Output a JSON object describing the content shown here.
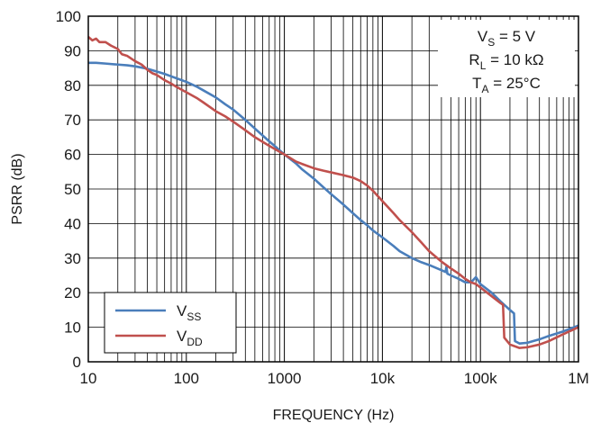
{
  "chart_data": {
    "type": "line",
    "title": "",
    "xlabel": "FREQUENCY (Hz)",
    "ylabel": "PSRR (dB)",
    "x_scale": "log",
    "xlim": [
      10,
      1000000
    ],
    "ylim": [
      0,
      100
    ],
    "grid": true,
    "x_tick_labels": [
      "10",
      "100",
      "1000",
      "10k",
      "100k",
      "1M"
    ],
    "y_ticks": [
      0,
      10,
      20,
      30,
      40,
      50,
      60,
      70,
      80,
      90,
      100
    ],
    "annotation": {
      "lines": [
        {
          "main": "V",
          "sub": "S",
          "rest": " = 5 V"
        },
        {
          "main": "R",
          "sub": "L",
          "rest": " = 10 kΩ"
        },
        {
          "main": "T",
          "sub": "A",
          "rest": " = 25°C"
        }
      ],
      "position": "top-right"
    },
    "legend_position": "bottom-left",
    "series": [
      {
        "name": "VSS",
        "legend_main": "V",
        "legend_sub": "SS",
        "color": "#4a7ebb",
        "points": [
          [
            10,
            86.5
          ],
          [
            12,
            86.5
          ],
          [
            15,
            86.3
          ],
          [
            20,
            86
          ],
          [
            25,
            85.8
          ],
          [
            30,
            85.5
          ],
          [
            40,
            84.8
          ],
          [
            50,
            84
          ],
          [
            60,
            83.3
          ],
          [
            70,
            82.6
          ],
          [
            80,
            82
          ],
          [
            100,
            81
          ],
          [
            130,
            79.5
          ],
          [
            150,
            78.5
          ],
          [
            200,
            76.5
          ],
          [
            250,
            74.5
          ],
          [
            300,
            73
          ],
          [
            400,
            70
          ],
          [
            500,
            67.5
          ],
          [
            600,
            65.5
          ],
          [
            700,
            63.8
          ],
          [
            800,
            62.4
          ],
          [
            1000,
            60
          ],
          [
            1300,
            57.5
          ],
          [
            1500,
            55.8
          ],
          [
            2000,
            53
          ],
          [
            2500,
            50.5
          ],
          [
            3000,
            48.5
          ],
          [
            4000,
            45.5
          ],
          [
            5000,
            43
          ],
          [
            6000,
            41
          ],
          [
            7000,
            39.5
          ],
          [
            8000,
            38
          ],
          [
            10000,
            36
          ],
          [
            13000,
            33.5
          ],
          [
            15000,
            32
          ],
          [
            20000,
            30
          ],
          [
            25000,
            28.8
          ],
          [
            30000,
            28
          ],
          [
            40000,
            26.5
          ],
          [
            44000,
            26
          ],
          [
            45000,
            27.5
          ],
          [
            46000,
            25.5
          ],
          [
            50000,
            25
          ],
          [
            60000,
            24
          ],
          [
            70000,
            23
          ],
          [
            80000,
            23
          ],
          [
            90000,
            24.5
          ],
          [
            95000,
            23.5
          ],
          [
            100000,
            22.5
          ],
          [
            130000,
            20
          ],
          [
            160000,
            17.5
          ],
          [
            200000,
            15
          ],
          [
            220000,
            14
          ],
          [
            225000,
            6
          ],
          [
            250000,
            5.3
          ],
          [
            300000,
            5.5
          ],
          [
            400000,
            6.5
          ],
          [
            500000,
            7.5
          ],
          [
            700000,
            8.8
          ],
          [
            1000000,
            10.5
          ]
        ]
      },
      {
        "name": "VDD",
        "legend_main": "V",
        "legend_sub": "DD",
        "color": "#c0504d",
        "points": [
          [
            10,
            94
          ],
          [
            11,
            93
          ],
          [
            12,
            93.5
          ],
          [
            13,
            92.5
          ],
          [
            15,
            92.5
          ],
          [
            17,
            91.5
          ],
          [
            20,
            90.5
          ],
          [
            22,
            89
          ],
          [
            25,
            88.5
          ],
          [
            30,
            87
          ],
          [
            35,
            86
          ],
          [
            40,
            84.5
          ],
          [
            45,
            83.5
          ],
          [
            50,
            83
          ],
          [
            60,
            81.5
          ],
          [
            70,
            80.5
          ],
          [
            80,
            79.5
          ],
          [
            100,
            78
          ],
          [
            130,
            76.2
          ],
          [
            150,
            75
          ],
          [
            200,
            72.5
          ],
          [
            250,
            71
          ],
          [
            300,
            69.5
          ],
          [
            400,
            67
          ],
          [
            500,
            65
          ],
          [
            700,
            62.5
          ],
          [
            1000,
            60
          ],
          [
            1300,
            58
          ],
          [
            1500,
            57.3
          ],
          [
            2000,
            56
          ],
          [
            2500,
            55.3
          ],
          [
            3000,
            54.8
          ],
          [
            4000,
            54
          ],
          [
            5000,
            53.3
          ],
          [
            6000,
            52.3
          ],
          [
            7000,
            51
          ],
          [
            8000,
            49.5
          ],
          [
            10000,
            46.5
          ],
          [
            13000,
            43
          ],
          [
            15000,
            41
          ],
          [
            20000,
            37.5
          ],
          [
            25000,
            34.5
          ],
          [
            30000,
            32
          ],
          [
            40000,
            29
          ],
          [
            50000,
            27
          ],
          [
            60000,
            25.5
          ],
          [
            70000,
            24
          ],
          [
            80000,
            23
          ],
          [
            90000,
            22.5
          ],
          [
            100000,
            21.5
          ],
          [
            130000,
            19
          ],
          [
            160000,
            17
          ],
          [
            170000,
            16.5
          ],
          [
            175000,
            7
          ],
          [
            200000,
            5
          ],
          [
            250000,
            4
          ],
          [
            300000,
            4.2
          ],
          [
            400000,
            5
          ],
          [
            500000,
            6
          ],
          [
            700000,
            8
          ],
          [
            1000000,
            10
          ]
        ]
      }
    ]
  }
}
